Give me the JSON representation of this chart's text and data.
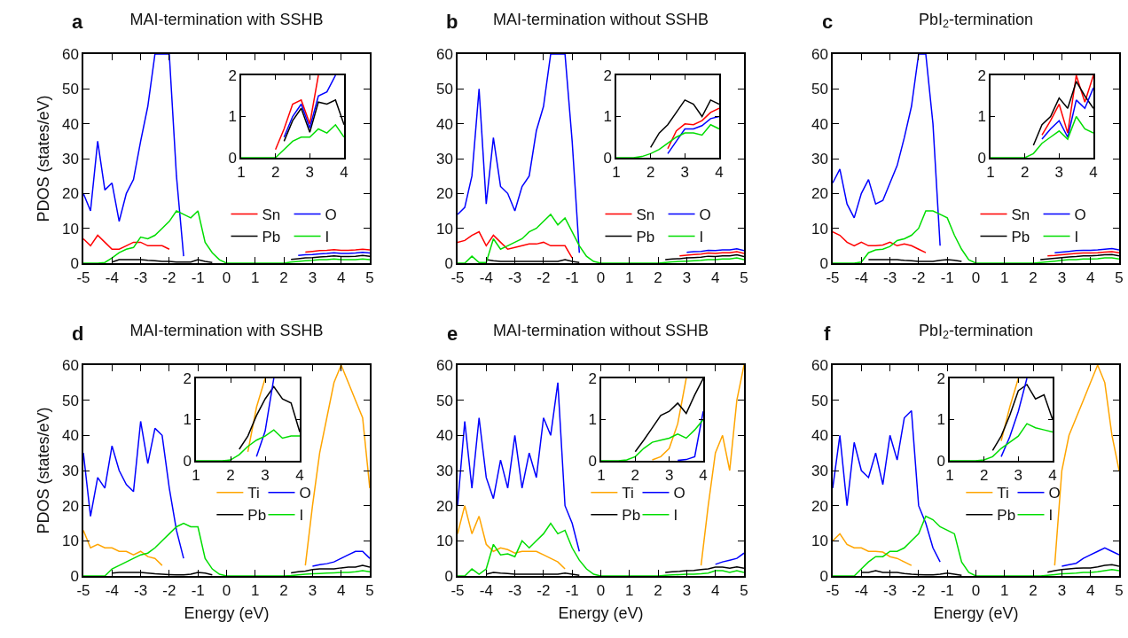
{
  "chart_data": [
    {
      "type": "line",
      "title": "MAI-termination with SSHB",
      "annotations": [
        "a"
      ],
      "ylabel": "PDOS (states/eV)",
      "legend": "bottom right",
      "x": [
        -5,
        -4.75,
        -4.5,
        -4.25,
        -4,
        -3.75,
        -3.5,
        -3.25,
        -3,
        -2.75,
        -2.5,
        -2.25,
        -2,
        -1.75,
        -1.5,
        -1.25,
        -1,
        -0.75,
        -0.5,
        -0.25,
        0,
        0.25,
        0.5,
        0.75,
        1,
        1.25,
        1.5,
        1.75,
        2,
        2.25,
        2.5,
        2.75,
        3,
        3.25,
        3.5,
        3.75,
        4,
        4.25,
        4.5,
        4.75,
        5
      ],
      "xlim": [
        -5,
        5
      ],
      "xticks": [
        -5,
        -4,
        -3,
        -2,
        -1,
        0,
        1,
        2,
        3,
        4,
        5
      ],
      "ylim": [
        0,
        60
      ],
      "yticks": [
        0,
        10,
        20,
        30,
        40,
        50,
        60
      ],
      "series": [
        {
          "name": "Sn",
          "color": "#ff0000",
          "values": [
            7,
            5,
            8,
            6,
            4,
            4,
            5,
            6,
            6,
            5,
            5,
            5,
            4,
            null,
            null,
            null,
            null,
            null,
            null,
            null,
            null,
            null,
            null,
            null,
            null,
            null,
            null,
            null,
            null,
            null,
            null,
            3.2,
            3.4,
            3.6,
            3.7,
            3.9,
            3.7,
            3.7,
            3.8,
            4,
            3.8
          ]
        },
        {
          "name": "Pb",
          "color": "#000000",
          "values": [
            null,
            null,
            null,
            null,
            0.3,
            1,
            1,
            1,
            1,
            0.8,
            0.7,
            0.5,
            0.5,
            0.3,
            0.3,
            0.3,
            1,
            0.5,
            0.2,
            null,
            null,
            null,
            null,
            null,
            null,
            null,
            null,
            null,
            null,
            1.1,
            1.3,
            1.5,
            1.6,
            1.8,
            1.9,
            2.1,
            1.9,
            1.9,
            2,
            2.2,
            2
          ]
        },
        {
          "name": "O",
          "color": "#0000ff",
          "values": [
            20,
            15,
            35,
            21,
            23,
            12,
            20,
            24,
            35,
            45,
            60,
            60,
            60,
            25,
            2,
            null,
            null,
            null,
            null,
            null,
            null,
            null,
            null,
            null,
            null,
            null,
            null,
            null,
            null,
            null,
            2.2,
            2.4,
            2.5,
            2.7,
            2.8,
            3,
            2.8,
            2.8,
            2.9,
            3.1,
            2.9
          ]
        },
        {
          "name": "I",
          "color": "#00dd00",
          "values": [
            0,
            0,
            0,
            0.2,
            1.5,
            3,
            4,
            4.5,
            7.5,
            7,
            8,
            10,
            12,
            15,
            14,
            13,
            15,
            6,
            3,
            1,
            0,
            0,
            0,
            0,
            0,
            0,
            0,
            0,
            0,
            0.3,
            0.5,
            0.7,
            0.8,
            1,
            1,
            1.2,
            1,
            1,
            1,
            1.2,
            1
          ]
        }
      ]
    },
    {
      "type": "line",
      "x": [
        1,
        1.25,
        1.5,
        1.75,
        2,
        2.25,
        2.5,
        2.75,
        3,
        3.25,
        3.5,
        3.75,
        4
      ],
      "xlim": [
        1,
        4
      ],
      "xticks": [
        1,
        2,
        3,
        4
      ],
      "ylim": [
        0,
        2
      ],
      "yticks": [
        0,
        1,
        2
      ],
      "series": [
        {
          "color": "#ff0000",
          "values": [
            null,
            null,
            null,
            null,
            0.2,
            0.7,
            1.3,
            1.4,
            0.82,
            2,
            null,
            null,
            null
          ]
        },
        {
          "color": "#000000",
          "values": [
            null,
            null,
            null,
            null,
            null,
            0.4,
            0.9,
            1.2,
            0.62,
            1.35,
            1.3,
            1.4,
            0.8
          ]
        },
        {
          "color": "#0000ff",
          "values": [
            null,
            null,
            null,
            null,
            null,
            0.5,
            1,
            1.3,
            0.72,
            1.5,
            1.6,
            2,
            null
          ]
        },
        {
          "color": "#00dd00",
          "values": [
            0,
            0,
            0,
            0,
            0,
            0.2,
            0.4,
            0.5,
            0.5,
            0.7,
            0.6,
            0.8,
            0.5
          ]
        }
      ]
    },
    {
      "type": "line",
      "title": "MAI-termination without SSHB",
      "annotations": [
        "b"
      ],
      "legend": "bottom right",
      "x": [
        -5,
        -4.75,
        -4.5,
        -4.25,
        -4,
        -3.75,
        -3.5,
        -3.25,
        -3,
        -2.75,
        -2.5,
        -2.25,
        -2,
        -1.75,
        -1.5,
        -1.25,
        -1,
        -0.75,
        -0.5,
        -0.25,
        0,
        0.25,
        0.5,
        0.75,
        1,
        1.25,
        1.5,
        1.75,
        2,
        2.25,
        2.5,
        2.75,
        3,
        3.25,
        3.5,
        3.75,
        4,
        4.25,
        4.5,
        4.75,
        5
      ],
      "xlim": [
        -5,
        5
      ],
      "xticks": [
        -5,
        -4,
        -3,
        -2,
        -1,
        0,
        1,
        2,
        3,
        4,
        5
      ],
      "ylim": [
        0,
        60
      ],
      "yticks": [
        0,
        10,
        20,
        30,
        40,
        50,
        60
      ],
      "series": [
        {
          "name": "Sn",
          "color": "#ff0000",
          "values": [
            6,
            6.5,
            8,
            9,
            5,
            8,
            6,
            4,
            4.5,
            5,
            5.5,
            5.5,
            6,
            5,
            5,
            5,
            1.5,
            null,
            null,
            null,
            null,
            null,
            null,
            null,
            null,
            null,
            null,
            null,
            null,
            null,
            null,
            2.1,
            2.3,
            2.5,
            2.6,
            2.9,
            2.8,
            3,
            3,
            3.3,
            2.8
          ]
        },
        {
          "name": "Pb",
          "color": "#000000",
          "values": [
            null,
            null,
            null,
            null,
            1,
            0.7,
            0.5,
            0.5,
            0.5,
            0.5,
            0.5,
            0.5,
            0.5,
            0.5,
            0.5,
            1,
            0.5,
            0.2,
            null,
            null,
            null,
            null,
            null,
            null,
            null,
            null,
            null,
            null,
            null,
            1,
            1.2,
            1.3,
            1.5,
            1.6,
            1.7,
            2,
            1.9,
            2.1,
            2.1,
            2.4,
            1.9
          ]
        },
        {
          "name": "O",
          "color": "#0000ff",
          "values": [
            14,
            16,
            25,
            50,
            17,
            36,
            22,
            20,
            15,
            22,
            25,
            38,
            45,
            60,
            60,
            60,
            35,
            3,
            null,
            null,
            null,
            null,
            null,
            null,
            null,
            null,
            null,
            null,
            null,
            null,
            null,
            null,
            3.1,
            3.3,
            3.4,
            3.7,
            3.6,
            3.8,
            3.8,
            4.1,
            3.6
          ]
        },
        {
          "name": "I",
          "color": "#00dd00",
          "values": [
            0,
            0,
            2,
            0.2,
            0.2,
            7,
            4,
            5,
            6,
            7,
            9,
            10,
            12,
            14,
            11,
            13,
            9,
            5,
            2,
            0.5,
            0,
            0,
            0,
            0,
            0,
            0,
            0,
            0,
            0,
            0.2,
            0.4,
            0.5,
            0.6,
            0.7,
            0.8,
            1,
            1,
            1.2,
            1.2,
            1.5,
            1
          ]
        }
      ]
    },
    {
      "type": "line",
      "x": [
        1,
        1.25,
        1.5,
        1.75,
        2,
        2.25,
        2.5,
        2.75,
        3,
        3.25,
        3.5,
        3.75,
        4
      ],
      "xlim": [
        1,
        4
      ],
      "xticks": [
        1,
        2,
        3,
        4
      ],
      "ylim": [
        0,
        2
      ],
      "yticks": [
        0,
        1,
        2
      ],
      "series": [
        {
          "color": "#ff0000",
          "values": [
            null,
            null,
            null,
            null,
            null,
            null,
            0.22,
            0.65,
            0.82,
            0.8,
            0.9,
            1.1,
            1.2
          ]
        },
        {
          "color": "#000000",
          "values": [
            null,
            null,
            null,
            null,
            0.25,
            0.6,
            0.8,
            1.1,
            1.4,
            1.3,
            1,
            1.4,
            1.3
          ]
        },
        {
          "color": "#0000ff",
          "values": [
            null,
            null,
            null,
            null,
            null,
            null,
            0.1,
            0.4,
            0.7,
            0.7,
            0.78,
            0.95,
            1
          ]
        },
        {
          "color": "#00dd00",
          "values": [
            0,
            0,
            0,
            0.03,
            0.1,
            0.2,
            0.35,
            0.5,
            0.6,
            0.6,
            0.55,
            0.8,
            0.7
          ]
        }
      ]
    },
    {
      "type": "line",
      "title": "PbI$_{2}$-termination",
      "annotations": [
        "c"
      ],
      "legend": "bottom right",
      "x": [
        -5,
        -4.75,
        -4.5,
        -4.25,
        -4,
        -3.75,
        -3.5,
        -3.25,
        -3,
        -2.75,
        -2.5,
        -2.25,
        -2,
        -1.75,
        -1.5,
        -1.25,
        -1,
        -0.75,
        -0.5,
        -0.25,
        0,
        0.25,
        0.5,
        0.75,
        1,
        1.25,
        1.5,
        1.75,
        2,
        2.25,
        2.5,
        2.75,
        3,
        3.25,
        3.5,
        3.75,
        4,
        4.25,
        4.5,
        4.75,
        5
      ],
      "xlim": [
        -5,
        5
      ],
      "xticks": [
        -5,
        -4,
        -3,
        -2,
        -1,
        0,
        1,
        2,
        3,
        4,
        5
      ],
      "ylim": [
        0,
        60
      ],
      "yticks": [
        0,
        10,
        20,
        30,
        40,
        50,
        60
      ],
      "series": [
        {
          "name": "Sn",
          "color": "#ff0000",
          "values": [
            9,
            8,
            6,
            5,
            6,
            5,
            5,
            5.2,
            6,
            5,
            5.5,
            5,
            4,
            3,
            null,
            null,
            null,
            null,
            null,
            null,
            null,
            null,
            null,
            null,
            null,
            null,
            null,
            null,
            null,
            null,
            2.1,
            2.2,
            2.4,
            2.6,
            2.8,
            2.9,
            2.9,
            3,
            3.2,
            3.3,
            3
          ]
        },
        {
          "name": "Pb",
          "color": "#000000",
          "values": [
            null,
            null,
            null,
            null,
            null,
            1,
            1,
            1,
            1,
            1,
            0.8,
            0.7,
            0.5,
            0.5,
            0.5,
            0.8,
            1,
            0.8,
            0.5,
            null,
            null,
            null,
            null,
            null,
            null,
            null,
            null,
            null,
            null,
            1,
            1.2,
            1.4,
            1.6,
            1.8,
            1.9,
            2.1,
            2.1,
            2.2,
            2.4,
            2.5,
            2.1
          ]
        },
        {
          "name": "O",
          "color": "#0000ff",
          "values": [
            23,
            27,
            17,
            13,
            20,
            24,
            17,
            18,
            23,
            28,
            36,
            45,
            60,
            60,
            40,
            5,
            null,
            null,
            null,
            null,
            null,
            null,
            null,
            null,
            null,
            null,
            null,
            null,
            null,
            null,
            null,
            3,
            3.2,
            3.4,
            3.6,
            3.7,
            3.7,
            3.8,
            4,
            4.2,
            3.8
          ]
        },
        {
          "name": "I",
          "color": "#00dd00",
          "values": [
            0,
            0,
            0,
            0,
            0.3,
            3,
            3.8,
            4,
            4.8,
            6.5,
            7,
            8,
            10,
            15,
            15,
            14,
            13,
            8,
            4,
            1,
            0,
            0,
            0,
            0,
            0,
            0,
            0,
            0,
            0,
            0.2,
            0.4,
            0.6,
            0.8,
            1,
            1,
            1.2,
            1.2,
            1.3,
            1.5,
            1.5,
            1.2
          ]
        }
      ]
    },
    {
      "type": "line",
      "x": [
        1,
        1.25,
        1.5,
        1.75,
        2,
        2.25,
        2.5,
        2.75,
        3,
        3.25,
        3.5,
        3.75,
        4
      ],
      "xlim": [
        1,
        4
      ],
      "xticks": [
        1,
        2,
        3,
        4
      ],
      "ylim": [
        0,
        2
      ],
      "yticks": [
        0,
        1,
        2
      ],
      "series": [
        {
          "color": "#ff0000",
          "values": [
            null,
            null,
            null,
            null,
            null,
            null,
            0.55,
            0.9,
            1.3,
            0.6,
            2,
            1.35,
            2
          ]
        },
        {
          "color": "#000000",
          "values": [
            null,
            null,
            null,
            null,
            null,
            0.3,
            0.8,
            1,
            1.45,
            1.2,
            1.85,
            1.5,
            1.2
          ]
        },
        {
          "color": "#0000ff",
          "values": [
            null,
            null,
            null,
            null,
            null,
            null,
            0.45,
            0.7,
            0.9,
            0.5,
            1.4,
            1.2,
            1.7
          ]
        },
        {
          "color": "#00dd00",
          "values": [
            0,
            0,
            0,
            0,
            0,
            0.1,
            0.35,
            0.5,
            0.65,
            0.45,
            1,
            0.7,
            0.6
          ]
        }
      ]
    },
    {
      "type": "line",
      "title": "MAI-termination with SSHB",
      "annotations": [
        "d"
      ],
      "xlabel": "Energy (eV)",
      "ylabel": "PDOS (states/eV)",
      "legend": "right",
      "x": [
        -5,
        -4.75,
        -4.5,
        -4.25,
        -4,
        -3.75,
        -3.5,
        -3.25,
        -3,
        -2.75,
        -2.5,
        -2.25,
        -2,
        -1.75,
        -1.5,
        -1.25,
        -1,
        -0.75,
        -0.5,
        -0.25,
        0,
        0.25,
        0.5,
        0.75,
        1,
        1.25,
        1.5,
        1.75,
        2,
        2.25,
        2.5,
        2.75,
        3,
        3.25,
        3.5,
        3.75,
        4,
        4.25,
        4.5,
        4.75,
        5
      ],
      "xlim": [
        -5,
        5
      ],
      "xticks": [
        -5,
        -4,
        -3,
        -2,
        -1,
        0,
        1,
        2,
        3,
        4,
        5
      ],
      "ylim": [
        0,
        60
      ],
      "yticks": [
        0,
        10,
        20,
        30,
        40,
        50,
        60
      ],
      "series": [
        {
          "name": "Ti",
          "color": "#ffa500",
          "values": [
            13,
            8,
            9,
            8,
            8,
            7,
            7,
            6,
            7,
            5.5,
            5,
            3,
            null,
            null,
            null,
            null,
            null,
            null,
            null,
            null,
            null,
            null,
            null,
            null,
            null,
            null,
            null,
            null,
            null,
            null,
            null,
            3,
            20,
            35,
            45,
            55,
            60,
            55,
            50,
            45,
            25
          ]
        },
        {
          "name": "Pb",
          "color": "#000000",
          "values": [
            null,
            null,
            null,
            null,
            0.8,
            1,
            1,
            1,
            1,
            0.8,
            0.6,
            0.5,
            0.4,
            0.3,
            0.3,
            0.5,
            1,
            0.8,
            0.3,
            null,
            null,
            null,
            null,
            null,
            null,
            null,
            null,
            null,
            null,
            0.9,
            1.2,
            1.4,
            1.8,
            2,
            2,
            2,
            2.3,
            2.5,
            2.5,
            3,
            2.5
          ]
        },
        {
          "name": "O",
          "color": "#0000ff",
          "values": [
            35,
            17,
            28,
            25,
            37,
            30,
            26,
            24,
            44,
            32,
            42,
            40,
            25,
            13,
            5,
            null,
            null,
            null,
            null,
            null,
            null,
            null,
            null,
            null,
            null,
            null,
            null,
            null,
            null,
            null,
            null,
            null,
            2.8,
            3.2,
            3.5,
            4,
            5,
            6,
            7,
            7,
            5
          ]
        },
        {
          "name": "I",
          "color": "#00dd00",
          "values": [
            0,
            0,
            0,
            0,
            2,
            3,
            4,
            5,
            6,
            6.5,
            8,
            10,
            12,
            14,
            15,
            14,
            14,
            5,
            2,
            0.5,
            0,
            0,
            0,
            0,
            0,
            0,
            0,
            0,
            0,
            0.1,
            0.3,
            0.5,
            0.6,
            0.7,
            0.8,
            0.9,
            1,
            1,
            1.2,
            1.5,
            1.2
          ]
        }
      ]
    },
    {
      "type": "line",
      "x": [
        1,
        1.25,
        1.5,
        1.75,
        2,
        2.25,
        2.5,
        2.75,
        3,
        3.25,
        3.5,
        3.75,
        4
      ],
      "xlim": [
        1,
        4
      ],
      "xticks": [
        1,
        2,
        3,
        4
      ],
      "ylim": [
        0,
        2
      ],
      "yticks": [
        0,
        1,
        2
      ],
      "series": [
        {
          "color": "#ffa500",
          "values": [
            null,
            null,
            null,
            null,
            null,
            null,
            0.22,
            1.3,
            2,
            null,
            null,
            null,
            null
          ]
        },
        {
          "color": "#000000",
          "values": [
            null,
            null,
            null,
            null,
            null,
            0.28,
            0.6,
            1.1,
            1.5,
            1.8,
            1.5,
            1.4,
            0.7
          ]
        },
        {
          "color": "#0000ff",
          "values": [
            null,
            null,
            null,
            null,
            null,
            null,
            null,
            0.1,
            0.72,
            2,
            null,
            null,
            null
          ]
        },
        {
          "color": "#00dd00",
          "values": [
            0,
            0,
            0,
            0,
            0.02,
            0.15,
            0.35,
            0.5,
            0.6,
            0.75,
            0.55,
            0.6,
            0.6
          ]
        }
      ]
    },
    {
      "type": "line",
      "title": "MAI-termination without SSHB",
      "annotations": [
        "e"
      ],
      "xlabel": "Energy (eV)",
      "legend": "right",
      "x": [
        -5,
        -4.75,
        -4.5,
        -4.25,
        -4,
        -3.75,
        -3.5,
        -3.25,
        -3,
        -2.75,
        -2.5,
        -2.25,
        -2,
        -1.75,
        -1.5,
        -1.25,
        -1,
        -0.75,
        -0.5,
        -0.25,
        0,
        0.25,
        0.5,
        0.75,
        1,
        1.25,
        1.5,
        1.75,
        2,
        2.25,
        2.5,
        2.75,
        3,
        3.25,
        3.5,
        3.75,
        4,
        4.25,
        4.5,
        4.75,
        5
      ],
      "xlim": [
        -5,
        5
      ],
      "xticks": [
        -5,
        -4,
        -3,
        -2,
        -1,
        0,
        1,
        2,
        3,
        4,
        5
      ],
      "ylim": [
        0,
        60
      ],
      "yticks": [
        0,
        10,
        20,
        30,
        40,
        50,
        60
      ],
      "series": [
        {
          "name": "Ti",
          "color": "#ffa500",
          "values": [
            12,
            20,
            12,
            17,
            9,
            7,
            8,
            7.5,
            6.5,
            7,
            7,
            7,
            6,
            5,
            4,
            2,
            null,
            null,
            null,
            null,
            null,
            null,
            null,
            null,
            null,
            null,
            null,
            null,
            null,
            null,
            null,
            null,
            null,
            null,
            3,
            20,
            35,
            40,
            30,
            50,
            60
          ]
        },
        {
          "name": "Pb",
          "color": "#000000",
          "values": [
            null,
            null,
            null,
            null,
            0.5,
            1,
            0.8,
            0.7,
            0.5,
            0.5,
            0.5,
            0.5,
            0.5,
            0.5,
            0.5,
            0.8,
            0.5,
            0.2,
            null,
            null,
            null,
            null,
            null,
            null,
            null,
            null,
            null,
            null,
            null,
            1,
            1.2,
            1.3,
            1.5,
            1.6,
            1.8,
            2,
            2.5,
            2.5,
            2.2,
            2.6,
            2.2
          ]
        },
        {
          "name": "O",
          "color": "#0000ff",
          "values": [
            20,
            44,
            25,
            45,
            28,
            22,
            33,
            25,
            40,
            25,
            35,
            28,
            45,
            40,
            55,
            20,
            15,
            7,
            null,
            null,
            null,
            null,
            null,
            null,
            null,
            null,
            null,
            null,
            null,
            null,
            null,
            null,
            null,
            null,
            null,
            null,
            3.3,
            4,
            4.5,
            5,
            6.5
          ]
        },
        {
          "name": "I",
          "color": "#00dd00",
          "values": [
            0,
            0,
            2,
            0.5,
            2,
            9,
            6,
            6.3,
            5.5,
            10,
            8,
            10,
            12,
            15,
            12,
            13,
            8,
            4.5,
            2,
            0.5,
            0,
            0,
            0,
            0,
            0,
            0,
            0,
            0,
            0,
            0.2,
            0.3,
            0.4,
            0.5,
            0.5,
            0.6,
            0.8,
            1.5,
            1.5,
            1,
            1.5,
            1
          ]
        }
      ]
    },
    {
      "type": "line",
      "x": [
        1,
        1.25,
        1.5,
        1.75,
        2,
        2.25,
        2.5,
        2.75,
        3,
        3.25,
        3.5,
        3.75,
        4
      ],
      "xlim": [
        1,
        4
      ],
      "xticks": [
        1,
        2,
        3,
        4
      ],
      "ylim": [
        0,
        2
      ],
      "yticks": [
        0,
        1,
        2
      ],
      "series": [
        {
          "color": "#ffa500",
          "values": [
            null,
            null,
            null,
            null,
            null,
            null,
            0.02,
            0.1,
            0.3,
            0.9,
            2,
            null,
            null
          ]
        },
        {
          "color": "#000000",
          "values": [
            null,
            null,
            null,
            null,
            0.22,
            0.5,
            0.8,
            1.1,
            1.2,
            1.4,
            1.15,
            1.6,
            2
          ]
        },
        {
          "color": "#0000ff",
          "values": [
            null,
            null,
            null,
            null,
            null,
            null,
            null,
            null,
            null,
            0.01,
            0.03,
            0.1,
            1.2
          ]
        },
        {
          "color": "#00dd00",
          "values": [
            0,
            0,
            0,
            0.02,
            0.1,
            0.3,
            0.45,
            0.5,
            0.55,
            0.65,
            0.55,
            0.75,
            1
          ]
        }
      ]
    },
    {
      "type": "line",
      "title": "PbI$_{2}$-termination",
      "annotations": [
        "f"
      ],
      "xlabel": "Energy (eV)",
      "legend": "right",
      "x": [
        -5,
        -4.75,
        -4.5,
        -4.25,
        -4,
        -3.75,
        -3.5,
        -3.25,
        -3,
        -2.75,
        -2.5,
        -2.25,
        -2,
        -1.75,
        -1.5,
        -1.25,
        -1,
        -0.75,
        -0.5,
        -0.25,
        0,
        0.25,
        0.5,
        0.75,
        1,
        1.25,
        1.5,
        1.75,
        2,
        2.25,
        2.5,
        2.75,
        3,
        3.25,
        3.5,
        3.75,
        4,
        4.25,
        4.5,
        4.75,
        5
      ],
      "xlim": [
        -5,
        5
      ],
      "xticks": [
        -5,
        -4,
        -3,
        -2,
        -1,
        0,
        1,
        2,
        3,
        4,
        5
      ],
      "ylim": [
        0,
        60
      ],
      "yticks": [
        0,
        10,
        20,
        30,
        40,
        50,
        60
      ],
      "series": [
        {
          "name": "Ti",
          "color": "#ffa500",
          "values": [
            10,
            12,
            9,
            8,
            8,
            7,
            7,
            6.8,
            5.5,
            5,
            4,
            3,
            null,
            null,
            null,
            null,
            null,
            null,
            null,
            null,
            null,
            null,
            null,
            null,
            null,
            null,
            null,
            null,
            null,
            null,
            null,
            3,
            30,
            40,
            45,
            50,
            55,
            60,
            55,
            40,
            30
          ]
        },
        {
          "name": "Pb",
          "color": "#000000",
          "values": [
            null,
            null,
            null,
            null,
            1,
            1,
            1.5,
            1,
            1,
            1,
            0.7,
            0.5,
            0.4,
            0.3,
            0.3,
            0.5,
            0.8,
            0.5,
            0.2,
            null,
            null,
            null,
            null,
            null,
            null,
            null,
            null,
            null,
            null,
            null,
            1.1,
            1.5,
            1.8,
            2,
            2.2,
            2.3,
            2.3,
            2.6,
            3,
            3.2,
            2.8
          ]
        },
        {
          "name": "O",
          "color": "#0000ff",
          "values": [
            25,
            40,
            20,
            38,
            30,
            28,
            35,
            26,
            40,
            33,
            45,
            47,
            20,
            15,
            8,
            4,
            null,
            null,
            null,
            null,
            null,
            null,
            null,
            null,
            null,
            null,
            null,
            null,
            null,
            null,
            null,
            null,
            2.8,
            3.2,
            3.6,
            5,
            6,
            7,
            8,
            7,
            6
          ]
        },
        {
          "name": "I",
          "color": "#00dd00",
          "values": [
            0,
            0,
            0,
            0,
            2,
            4,
            5.5,
            5.5,
            7,
            7,
            8,
            10,
            12,
            17,
            16,
            14,
            13,
            12,
            4,
            1,
            0,
            0,
            0,
            0,
            0,
            0,
            0,
            0,
            0,
            0,
            0.2,
            0.4,
            0.6,
            0.7,
            0.8,
            1,
            1,
            1.2,
            1.5,
            1.8,
            1.5
          ]
        }
      ]
    },
    {
      "type": "line",
      "x": [
        1,
        1.25,
        1.5,
        1.75,
        2,
        2.25,
        2.5,
        2.75,
        3,
        3.25,
        3.5,
        3.75,
        4
      ],
      "xlim": [
        1,
        4
      ],
      "xticks": [
        1,
        2,
        3,
        4
      ],
      "ylim": [
        0,
        2
      ],
      "yticks": [
        0,
        1,
        2
      ],
      "series": [
        {
          "color": "#ffa500",
          "values": [
            null,
            null,
            null,
            null,
            null,
            null,
            0.48,
            1.3,
            2,
            null,
            null,
            null,
            null
          ]
        },
        {
          "color": "#000000",
          "values": [
            null,
            null,
            null,
            null,
            null,
            0.25,
            0.6,
            1.1,
            1.7,
            1.85,
            1.5,
            1.6,
            1
          ]
        },
        {
          "color": "#0000ff",
          "values": [
            null,
            null,
            null,
            null,
            null,
            null,
            0.1,
            0.58,
            1.2,
            2,
            null,
            null,
            null
          ]
        },
        {
          "color": "#00dd00",
          "values": [
            0,
            0,
            0,
            0,
            0.02,
            0.1,
            0.3,
            0.45,
            0.6,
            0.9,
            0.8,
            0.75,
            0.7
          ]
        }
      ]
    }
  ]
}
